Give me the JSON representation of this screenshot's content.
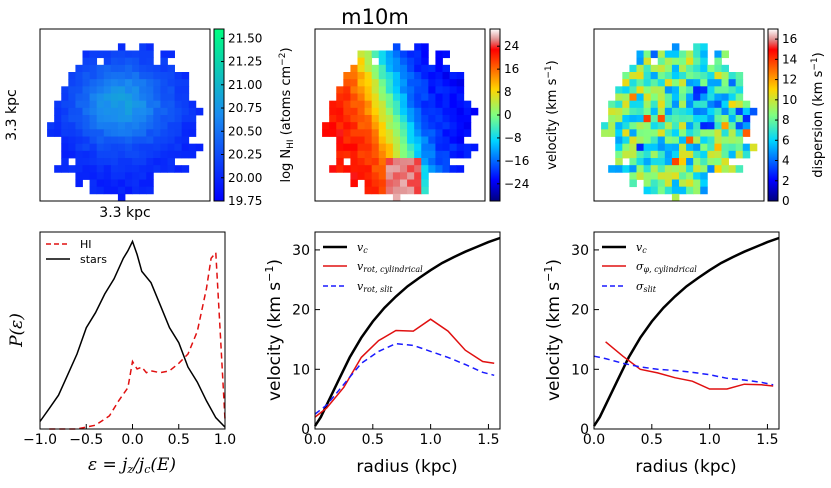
{
  "figure": {
    "title": "m10m",
    "colors": {
      "black": "#000000",
      "red": "#e01010",
      "blue": "#1a1aff"
    }
  },
  "chart_data": [
    {
      "type": "heatmap",
      "panel": "hi-column-density-map",
      "xlabel": "3.3 kpc",
      "ylabel": "3.3 kpc",
      "colorbar": {
        "label": "log N",
        "label_sub": "HI",
        "label_rest": " (atoms cm",
        "label_sup": "−2",
        "label_end": ")",
        "min": 19.75,
        "max": 21.6,
        "ticks": [
          "21.50",
          "21.25",
          "21.00",
          "20.75",
          "20.50",
          "20.25",
          "20.00",
          "19.75"
        ],
        "tick_values": [
          21.5,
          21.25,
          21.0,
          20.75,
          20.5,
          20.25,
          20.0,
          19.75
        ]
      }
    },
    {
      "type": "heatmap",
      "panel": "hi-velocity-map",
      "colorbar": {
        "label": "velocity (km s",
        "label_sup": "−1",
        "label_end": ")",
        "min": -30,
        "max": 30,
        "ticks": [
          "24",
          "16",
          "8",
          "0",
          "−8",
          "−16",
          "−24"
        ],
        "tick_values": [
          24,
          16,
          8,
          0,
          -8,
          -16,
          -24
        ]
      }
    },
    {
      "type": "heatmap",
      "panel": "hi-dispersion-map",
      "colorbar": {
        "label": "dispersion (km s",
        "label_sup": "−1",
        "label_end": ")",
        "min": 0,
        "max": 17,
        "ticks": [
          "16",
          "14",
          "12",
          "10",
          "8",
          "6",
          "4",
          "2",
          "0"
        ],
        "tick_values": [
          16,
          14,
          12,
          10,
          8,
          6,
          4,
          2,
          0
        ]
      }
    },
    {
      "type": "line",
      "panel": "circularity-distribution",
      "xlabel": "ε = j_z / j_c(E)",
      "ylabel": "P(ε)",
      "xlim": [
        -1.0,
        1.0
      ],
      "ylim": [
        0,
        1.05
      ],
      "xticks": [
        "−1.0",
        "−0.5",
        "0.0",
        "0.5",
        "1.0"
      ],
      "xtick_values": [
        -1.0,
        -0.5,
        0.0,
        0.5,
        1.0
      ],
      "legend": [
        "HI",
        "stars"
      ],
      "series": [
        {
          "name": "HI",
          "style": "dashed",
          "color": "#e01010",
          "x": [
            -0.9,
            -0.6,
            -0.4,
            -0.25,
            -0.15,
            -0.05,
            0.0,
            0.05,
            0.1,
            0.15,
            0.2,
            0.3,
            0.4,
            0.5,
            0.6,
            0.7,
            0.8,
            0.85,
            0.9,
            0.95,
            1.0
          ],
          "y": [
            0.0,
            0.0,
            0.02,
            0.07,
            0.15,
            0.22,
            0.36,
            0.32,
            0.33,
            0.3,
            0.31,
            0.3,
            0.31,
            0.35,
            0.4,
            0.52,
            0.75,
            0.91,
            0.94,
            0.5,
            0.05
          ]
        },
        {
          "name": "stars",
          "style": "solid",
          "color": "#000000",
          "x": [
            -1.0,
            -0.9,
            -0.8,
            -0.7,
            -0.6,
            -0.5,
            -0.4,
            -0.3,
            -0.2,
            -0.1,
            -0.05,
            0.0,
            0.05,
            0.1,
            0.2,
            0.3,
            0.4,
            0.5,
            0.6,
            0.7,
            0.8,
            0.9,
            1.0
          ],
          "y": [
            0.04,
            0.11,
            0.18,
            0.29,
            0.4,
            0.54,
            0.62,
            0.72,
            0.8,
            0.91,
            0.95,
            1.0,
            0.93,
            0.84,
            0.78,
            0.66,
            0.54,
            0.46,
            0.33,
            0.25,
            0.15,
            0.06,
            0.01
          ]
        }
      ]
    },
    {
      "type": "line",
      "panel": "rotation-curve",
      "xlabel": "radius (kpc)",
      "ylabel": "velocity (km s",
      "ylabel_sup": "−1",
      "ylabel_end": ")",
      "xlim": [
        0,
        1.6
      ],
      "ylim": [
        0,
        33
      ],
      "xticks": [
        "0.0",
        "0.5",
        "1.0",
        "1.5"
      ],
      "xtick_values": [
        0.0,
        0.5,
        1.0,
        1.5
      ],
      "yticks": [
        "0",
        "10",
        "20",
        "30"
      ],
      "ytick_values": [
        0,
        10,
        20,
        30
      ],
      "legend": [
        "v_c",
        "v_rot, cylindrical",
        "v_rot, slit"
      ],
      "series": [
        {
          "name": "v_c",
          "style": "solid",
          "color": "#000000",
          "width": 2.5,
          "x": [
            0.0,
            0.05,
            0.1,
            0.2,
            0.3,
            0.4,
            0.5,
            0.6,
            0.7,
            0.8,
            0.9,
            1.0,
            1.1,
            1.2,
            1.3,
            1.4,
            1.5,
            1.6
          ],
          "y": [
            0.5,
            2.0,
            4.0,
            8.0,
            12.0,
            15.3,
            18.0,
            20.3,
            22.2,
            23.9,
            25.3,
            26.6,
            27.8,
            28.8,
            29.7,
            30.5,
            31.3,
            32.0
          ]
        },
        {
          "name": "v_rot, cylindrical",
          "style": "solid",
          "color": "#e01010",
          "width": 1.5,
          "x": [
            0.0,
            0.1,
            0.25,
            0.4,
            0.55,
            0.7,
            0.85,
            1.0,
            1.15,
            1.3,
            1.45,
            1.55
          ],
          "y": [
            2.0,
            3.5,
            7.0,
            12.0,
            14.8,
            16.5,
            16.4,
            18.4,
            16.4,
            13.2,
            11.3,
            11.0
          ]
        },
        {
          "name": "v_rot, slit",
          "style": "dashed",
          "color": "#1a1aff",
          "width": 1.5,
          "x": [
            0.0,
            0.1,
            0.25,
            0.4,
            0.55,
            0.7,
            0.85,
            1.0,
            1.15,
            1.3,
            1.45,
            1.55
          ],
          "y": [
            2.5,
            4.0,
            7.5,
            11.0,
            13.0,
            14.3,
            14.0,
            13.0,
            12.0,
            10.8,
            9.5,
            9.0
          ]
        }
      ]
    },
    {
      "type": "line",
      "panel": "dispersion-profile",
      "xlabel": "radius (kpc)",
      "ylabel": "velocity (km s",
      "ylabel_sup": "−1",
      "ylabel_end": ")",
      "xlim": [
        0,
        1.6
      ],
      "ylim": [
        0,
        33
      ],
      "xticks": [
        "0.0",
        "0.5",
        "1.0",
        "1.5"
      ],
      "xtick_values": [
        0.0,
        0.5,
        1.0,
        1.5
      ],
      "yticks": [
        "0",
        "10",
        "20",
        "30"
      ],
      "ytick_values": [
        0,
        10,
        20,
        30
      ],
      "legend": [
        "v_c",
        "σ_φ, cylindrical",
        "σ_slit"
      ],
      "series": [
        {
          "name": "v_c",
          "style": "solid",
          "color": "#000000",
          "width": 2.5,
          "x": [
            0.0,
            0.05,
            0.1,
            0.2,
            0.3,
            0.4,
            0.5,
            0.6,
            0.7,
            0.8,
            0.9,
            1.0,
            1.1,
            1.2,
            1.3,
            1.4,
            1.5,
            1.6
          ],
          "y": [
            0.5,
            2.0,
            4.0,
            8.0,
            12.0,
            15.3,
            18.0,
            20.3,
            22.2,
            23.9,
            25.3,
            26.6,
            27.8,
            28.8,
            29.7,
            30.5,
            31.3,
            32.0
          ]
        },
        {
          "name": "σ_φ, cylindrical",
          "style": "solid",
          "color": "#e01010",
          "width": 1.5,
          "x": [
            0.1,
            0.25,
            0.4,
            0.55,
            0.7,
            0.85,
            1.0,
            1.15,
            1.3,
            1.45,
            1.55
          ],
          "y": [
            14.6,
            12.2,
            10.0,
            9.4,
            8.6,
            8.0,
            6.7,
            6.7,
            7.5,
            7.4,
            7.2
          ]
        },
        {
          "name": "σ_slit",
          "style": "dashed",
          "color": "#1a1aff",
          "width": 1.5,
          "x": [
            0.0,
            0.1,
            0.25,
            0.4,
            0.55,
            0.7,
            0.85,
            1.0,
            1.15,
            1.3,
            1.45,
            1.55
          ],
          "y": [
            12.2,
            11.8,
            11.0,
            10.4,
            10.0,
            9.8,
            9.5,
            9.1,
            8.5,
            8.2,
            7.8,
            7.4
          ]
        }
      ]
    }
  ]
}
